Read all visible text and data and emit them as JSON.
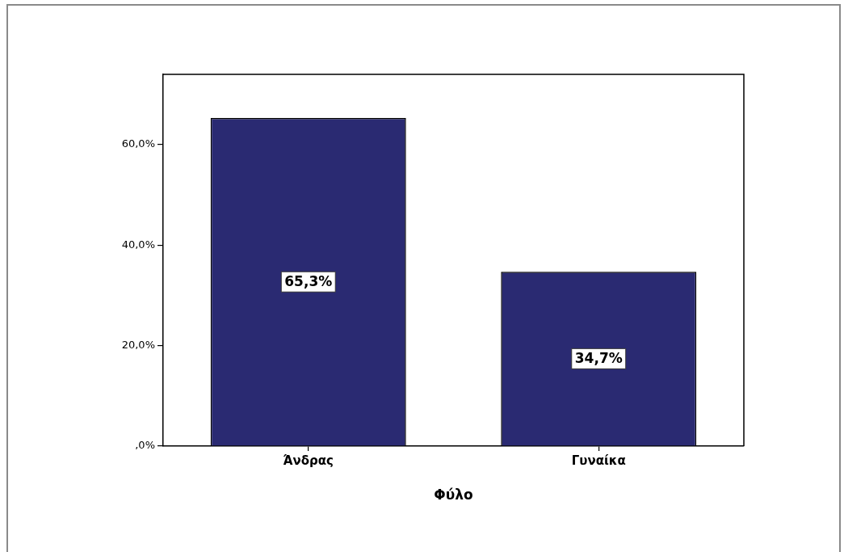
{
  "chart_data": {
    "type": "bar",
    "xlabel": "Φύλο",
    "categories": [
      "Άνδρας",
      "Γυναίκα"
    ],
    "values": [
      65.3,
      34.7
    ],
    "color": "#2a2a72",
    "value_labels": [
      "65,3%",
      "34,7%"
    ],
    "ylim": [
      0,
      74
    ],
    "yticks": [
      {
        "value": 0,
        "label": ",0%"
      },
      {
        "value": 20,
        "label": "20,0%"
      },
      {
        "value": 40,
        "label": "40,0%"
      },
      {
        "value": 60,
        "label": "60,0%"
      }
    ]
  }
}
